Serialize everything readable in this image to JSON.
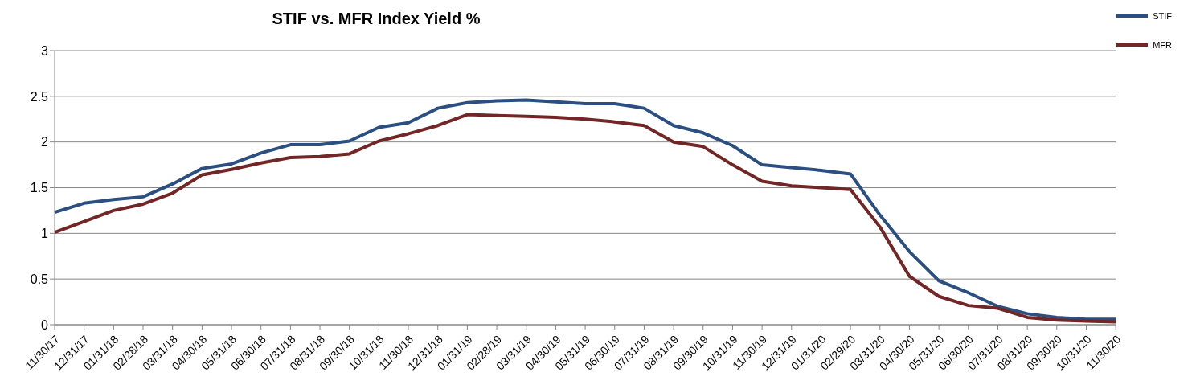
{
  "chart_data": {
    "type": "line",
    "title": "STIF vs. MFR Index Yield %",
    "categories": [
      "11/30/17",
      "12/31/17",
      "01/31/18",
      "02/28/18",
      "03/31/18",
      "04/30/18",
      "05/31/18",
      "06/30/18",
      "07/31/18",
      "08/31/18",
      "09/30/18",
      "10/31/18",
      "11/30/18",
      "12/31/18",
      "01/31/19",
      "02/28/19",
      "03/31/19",
      "04/30/19",
      "05/31/19",
      "06/30/19",
      "07/31/19",
      "08/31/19",
      "09/30/19",
      "10/31/19",
      "11/30/19",
      "12/31/19",
      "01/31/20",
      "02/29/20",
      "03/31/20",
      "04/30/20",
      "05/31/20",
      "06/30/20",
      "07/31/20",
      "08/31/20",
      "09/30/20",
      "10/31/20",
      "11/30/20"
    ],
    "series": [
      {
        "name": "STIF",
        "color": "#2b4f81",
        "values": [
          1.23,
          1.33,
          1.37,
          1.4,
          1.54,
          1.71,
          1.76,
          1.88,
          1.97,
          1.97,
          2.01,
          2.16,
          2.21,
          2.37,
          2.43,
          2.45,
          2.46,
          2.44,
          2.42,
          2.42,
          2.37,
          2.18,
          2.1,
          1.96,
          1.75,
          1.72,
          1.69,
          1.65,
          1.2,
          0.8,
          0.48,
          0.35,
          0.2,
          0.12,
          0.08,
          0.06,
          0.06
        ]
      },
      {
        "name": "MFR",
        "color": "#722626",
        "values": [
          1.01,
          1.13,
          1.25,
          1.32,
          1.44,
          1.64,
          1.7,
          1.77,
          1.83,
          1.84,
          1.87,
          2.01,
          2.09,
          2.18,
          2.3,
          2.29,
          2.28,
          2.27,
          2.25,
          2.22,
          2.18,
          2.0,
          1.95,
          1.75,
          1.57,
          1.52,
          1.5,
          1.48,
          1.07,
          0.53,
          0.31,
          0.21,
          0.18,
          0.08,
          0.05,
          0.04,
          0.03
        ]
      }
    ],
    "ylim": [
      0,
      3
    ],
    "yticks": [
      0,
      0.5,
      1,
      1.5,
      2,
      2.5,
      3
    ],
    "grid": "y",
    "legend": "top right",
    "marker": "none",
    "line_style": "solid"
  }
}
